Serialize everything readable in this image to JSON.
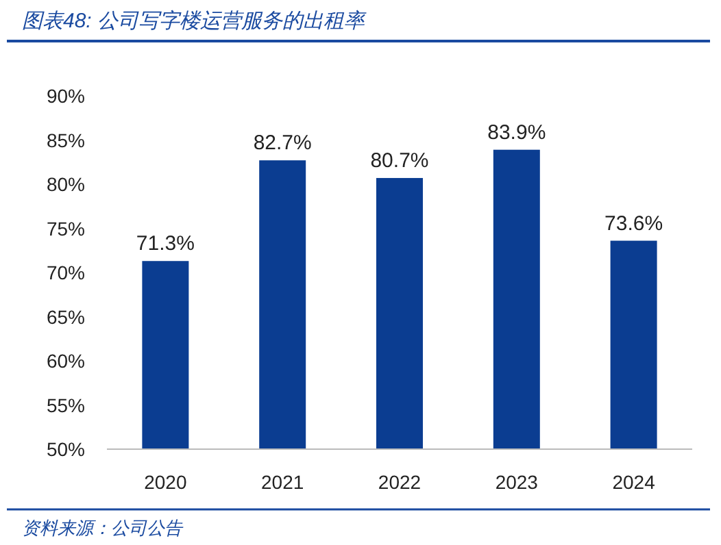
{
  "chart_data": {
    "type": "bar",
    "title": "图表48:  公司写字楼运营服务的出租率",
    "categories": [
      "2020",
      "2021",
      "2022",
      "2023",
      "2024"
    ],
    "values": [
      71.3,
      82.7,
      80.7,
      83.9,
      73.6
    ],
    "value_labels": [
      "71.3%",
      "82.7%",
      "80.7%",
      "83.9%",
      "73.6%"
    ],
    "color": "#0b3d91",
    "ylim": [
      50,
      90
    ],
    "yticks": [
      {
        "value": 50,
        "label": "50%"
      },
      {
        "value": 55,
        "label": "55%"
      },
      {
        "value": 60,
        "label": "60%"
      },
      {
        "value": 65,
        "label": "65%"
      },
      {
        "value": 70,
        "label": "70%"
      },
      {
        "value": 75,
        "label": "75%"
      },
      {
        "value": 80,
        "label": "80%"
      },
      {
        "value": 85,
        "label": "85%"
      },
      {
        "value": 90,
        "label": "90%"
      }
    ],
    "annotations": [
      "资料来源：公司公告"
    ]
  }
}
